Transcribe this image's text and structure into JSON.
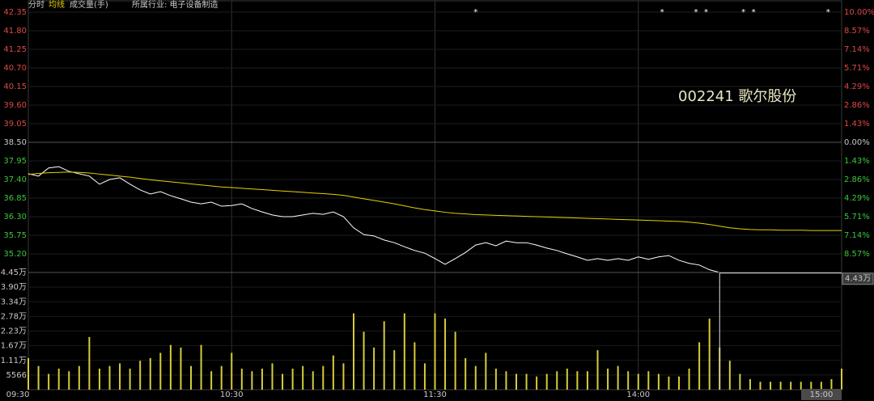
{
  "chart_data": [
    {
      "type": "line",
      "title": "002241 歌尔股份",
      "subtitle": "所属行业: 电子设备制造",
      "x": [
        0,
        3,
        6,
        9,
        12,
        15,
        18,
        21,
        24,
        27,
        30,
        33,
        36,
        39,
        42,
        45,
        48,
        51,
        54,
        57,
        60,
        63,
        66,
        69,
        72,
        75,
        78,
        81,
        84,
        87,
        90,
        93,
        96,
        99,
        102,
        105,
        108,
        111,
        114,
        117,
        120,
        123,
        126,
        129,
        132,
        135,
        138,
        141,
        144,
        147,
        150,
        153,
        156,
        159,
        162,
        165,
        168,
        171,
        174,
        177,
        180,
        183,
        186,
        189,
        192,
        195,
        198,
        201,
        204,
        207,
        210,
        213,
        216,
        219,
        222,
        225,
        228,
        231,
        234,
        237,
        240
      ],
      "xlim": [
        0,
        240
      ],
      "series": [
        {
          "name": "分时",
          "color": "#ffffff",
          "values": [
            37.57,
            37.5,
            37.74,
            37.78,
            37.64,
            37.57,
            37.5,
            37.26,
            37.4,
            37.45,
            37.26,
            37.09,
            36.97,
            37.04,
            36.92,
            36.83,
            36.73,
            36.68,
            36.73,
            36.61,
            36.63,
            36.68,
            36.54,
            36.44,
            36.35,
            36.3,
            36.3,
            36.35,
            36.4,
            36.37,
            36.44,
            36.3,
            35.97,
            35.77,
            35.73,
            35.61,
            35.53,
            35.41,
            35.3,
            35.22,
            35.06,
            34.89,
            35.06,
            35.24,
            35.46,
            35.53,
            35.44,
            35.58,
            35.53,
            35.53,
            35.46,
            35.37,
            35.3,
            35.2,
            35.11,
            35.01,
            35.06,
            35.01,
            35.06,
            35.01,
            35.11,
            35.04,
            35.11,
            35.15,
            35.01,
            34.92,
            34.87,
            34.73,
            34.65,
            34.65,
            34.65,
            34.65,
            34.65,
            34.65,
            34.65,
            34.65,
            34.65,
            34.65,
            34.65,
            34.65,
            34.65
          ]
        },
        {
          "name": "均线",
          "color": "#e6d200",
          "values": [
            37.55,
            37.58,
            37.6,
            37.61,
            37.62,
            37.61,
            37.59,
            37.56,
            37.53,
            37.5,
            37.47,
            37.43,
            37.39,
            37.36,
            37.33,
            37.3,
            37.27,
            37.24,
            37.21,
            37.18,
            37.16,
            37.14,
            37.12,
            37.1,
            37.08,
            37.06,
            37.04,
            37.02,
            37.0,
            36.98,
            36.96,
            36.93,
            36.88,
            36.83,
            36.78,
            36.73,
            36.68,
            36.62,
            36.56,
            36.51,
            36.47,
            36.43,
            36.4,
            36.38,
            36.36,
            36.35,
            36.34,
            36.33,
            36.32,
            36.31,
            36.3,
            36.29,
            36.28,
            36.27,
            36.26,
            36.25,
            36.24,
            36.23,
            36.22,
            36.21,
            36.2,
            36.19,
            36.18,
            36.17,
            36.16,
            36.14,
            36.11,
            36.07,
            36.02,
            35.97,
            35.94,
            35.92,
            35.91,
            35.91,
            35.9,
            35.9,
            35.9,
            35.89,
            35.89,
            35.89,
            35.89
          ]
        }
      ],
      "ylim": [
        34.65,
        42.35
      ],
      "yticks": [
        42.35,
        {
          "value": 41.8,
          "label": "41.80"
        },
        41.25,
        {
          "value": 40.7,
          "label": "40.70"
        },
        40.15,
        {
          "value": 39.6,
          "label": "39.60"
        },
        39.05,
        {
          "value": 38.5,
          "label": "38.50"
        },
        37.95,
        {
          "value": 37.4,
          "label": "37.40"
        },
        36.85,
        {
          "value": 36.3,
          "label": "36.30"
        },
        35.75,
        {
          "value": 35.2,
          "label": "35.20"
        }
      ],
      "y2lim": [
        -10,
        10
      ],
      "y2ticks": [
        {
          "value": 10,
          "label": "10.00%"
        },
        {
          "value": 8.57,
          "label": "8.57%"
        },
        {
          "value": 7.14,
          "label": "7.14%"
        },
        {
          "value": 5.71,
          "label": "5.71%"
        },
        {
          "value": 4.29,
          "label": "4.29%"
        },
        {
          "value": 2.86,
          "label": "2.86%"
        },
        {
          "value": 1.43,
          "label": "1.43%"
        },
        {
          "value": 0,
          "label": "0.00%"
        },
        {
          "value": -1.43,
          "label": "1.43%"
        },
        {
          "value": -2.86,
          "label": "2.86%"
        },
        {
          "value": -4.29,
          "label": "4.29%"
        },
        {
          "value": -5.71,
          "label": "5.71%"
        },
        {
          "value": -7.14,
          "label": "7.14%"
        },
        {
          "value": -8.57,
          "label": "8.57%"
        }
      ],
      "grid": true,
      "event_marks": {
        "label": "*",
        "x": [
          132,
          187,
          197,
          200,
          211,
          214,
          236
        ]
      }
    },
    {
      "type": "bar",
      "x": [
        0,
        3,
        6,
        9,
        12,
        15,
        18,
        21,
        24,
        27,
        30,
        33,
        36,
        39,
        42,
        45,
        48,
        51,
        54,
        57,
        60,
        63,
        66,
        69,
        72,
        75,
        78,
        81,
        84,
        87,
        90,
        93,
        96,
        99,
        102,
        105,
        108,
        111,
        114,
        117,
        120,
        123,
        126,
        129,
        132,
        135,
        138,
        141,
        144,
        147,
        150,
        153,
        156,
        159,
        162,
        165,
        168,
        171,
        174,
        177,
        180,
        183,
        186,
        189,
        192,
        195,
        198,
        201,
        204,
        207,
        210,
        213,
        216,
        219,
        222,
        225,
        228,
        231,
        234,
        237,
        240
      ],
      "xlim": [
        0,
        240
      ],
      "xticks": [
        {
          "value": 0,
          "label": "09:30"
        },
        {
          "value": 60,
          "label": "10:30"
        },
        {
          "value": 120,
          "label": "11:30"
        },
        {
          "value": 180,
          "label": "14:00"
        },
        {
          "value": 240,
          "label": "15:00"
        }
      ],
      "series": [
        {
          "name": "成交量(手)",
          "color": "#d6cc3a",
          "values": [
            12000,
            9000,
            6000,
            8000,
            7000,
            9000,
            20000,
            8000,
            9000,
            10000,
            8000,
            11000,
            12000,
            14000,
            17000,
            16000,
            9000,
            17000,
            7000,
            9000,
            14000,
            8000,
            7000,
            8000,
            10000,
            6000,
            8000,
            9000,
            7000,
            9000,
            13000,
            10000,
            29000,
            22000,
            16000,
            26000,
            15000,
            29000,
            18000,
            10000,
            29000,
            27000,
            22000,
            12000,
            9000,
            14000,
            8000,
            7000,
            6000,
            6000,
            5000,
            6000,
            7000,
            8000,
            7000,
            7000,
            15000,
            8000,
            9000,
            7000,
            6000,
            7000,
            6000,
            5000,
            5000,
            8000,
            18000,
            27000,
            16000,
            11000,
            6000,
            4000,
            3000,
            3000,
            3000,
            3000,
            3000,
            3000,
            3000,
            4000,
            8000
          ]
        }
      ],
      "ylim": [
        0,
        44528
      ],
      "yticks": [
        {
          "value": 44528,
          "label": "4.45万"
        },
        {
          "value": 38962,
          "label": "3.90万"
        },
        {
          "value": 33396,
          "label": "3.34万"
        },
        {
          "value": 27830,
          "label": "2.78万"
        },
        {
          "value": 22264,
          "label": "2.23万"
        },
        {
          "value": 16698,
          "label": "1.67万"
        },
        {
          "value": 11132,
          "label": "1.11万"
        },
        5566
      ],
      "cursor": {
        "x": 204,
        "value": 44300,
        "label": "4.43万"
      }
    }
  ]
}
